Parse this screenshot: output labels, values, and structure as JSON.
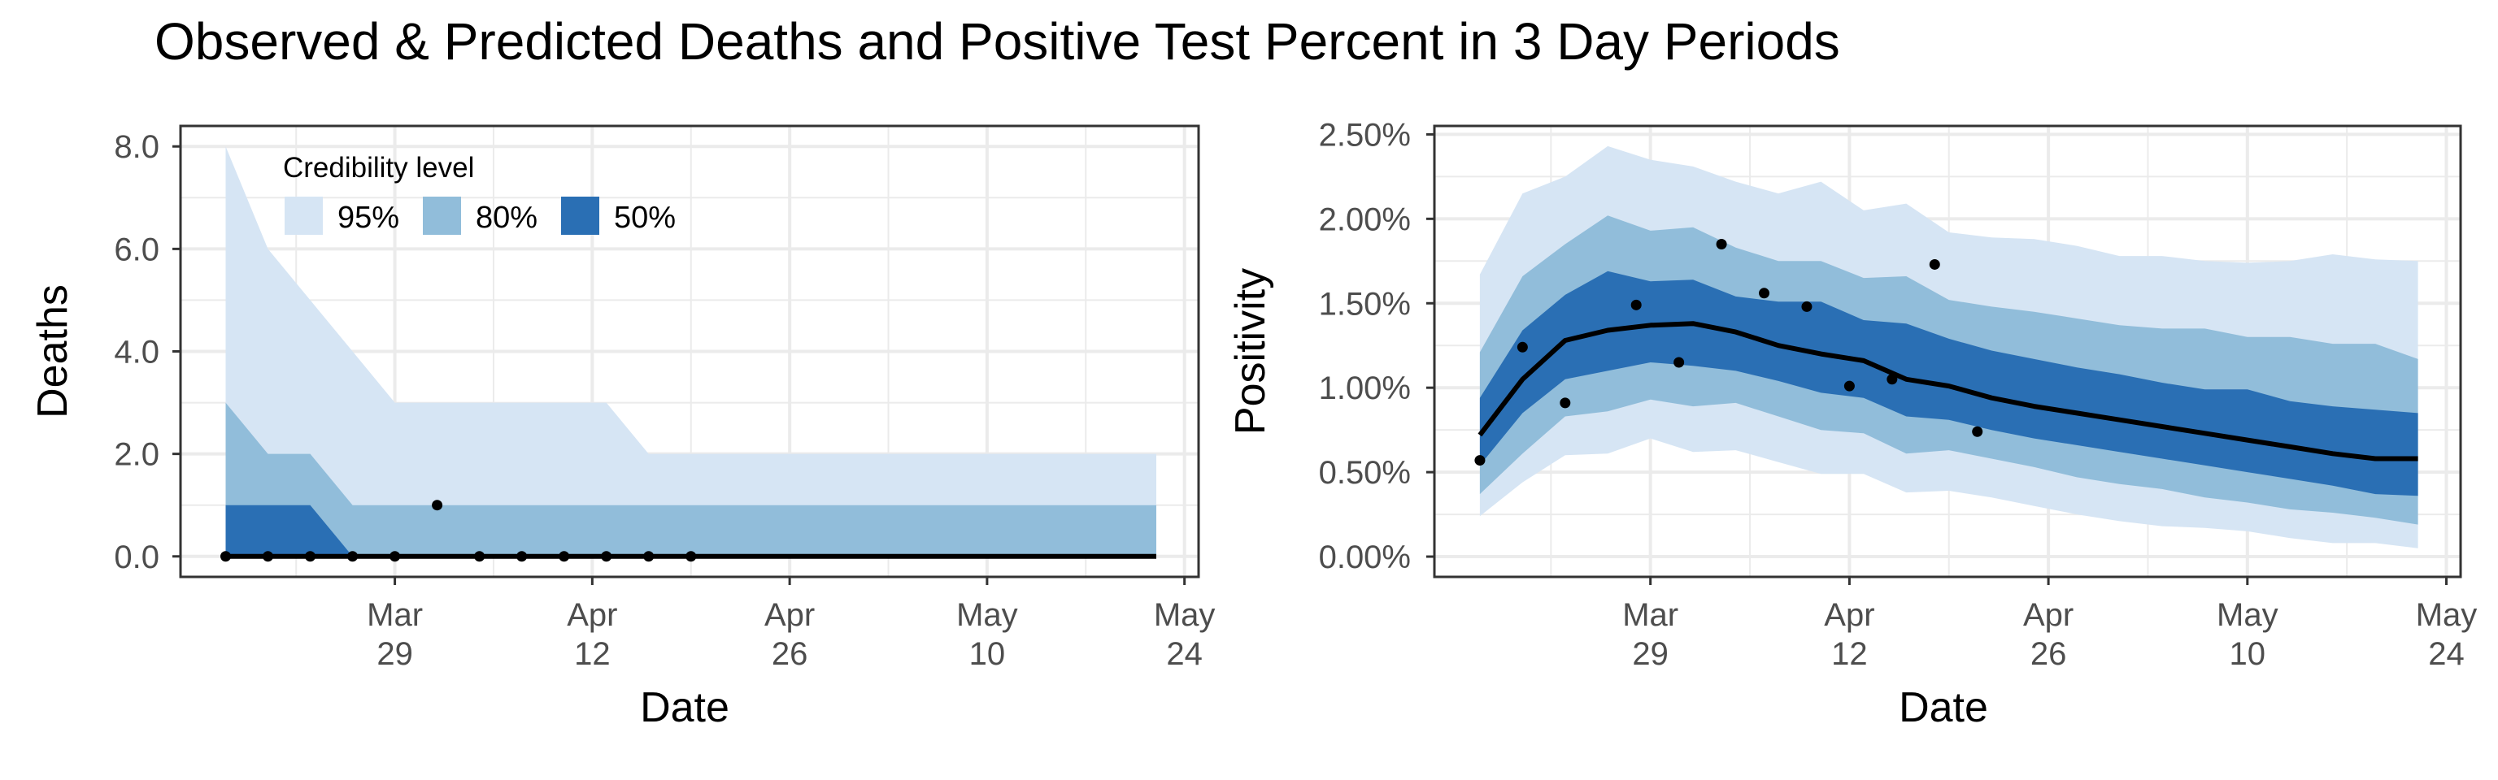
{
  "title": "Observed & Predicted Deaths and Positive Test Percent in 3 Day Periods",
  "colors": {
    "band95": "#d6e5f4",
    "band80": "#91bdda",
    "band50": "#2a6fb4",
    "line": "#000000",
    "points": "#000000",
    "grid": "#ebebeb",
    "axis": "#333333",
    "tick_text": "#4d4d4d"
  },
  "legend": {
    "title": "Credibility level",
    "items": [
      "95%",
      "80%",
      "50%"
    ]
  },
  "x_ticks": [
    {
      "label": "Mar\n29",
      "day": 28
    },
    {
      "label": "Apr\n12",
      "day": 42
    },
    {
      "label": "Apr\n26",
      "day": 56
    },
    {
      "label": "May\n10",
      "day": 70
    },
    {
      "label": "May\n24",
      "day": 84
    }
  ],
  "chart_data": [
    {
      "type": "area",
      "xlabel": "Date",
      "ylabel": "Deaths",
      "xlim": [
        12.8,
        85
      ],
      "ylim": [
        -0.4,
        8.4
      ],
      "y_ticks": [
        0,
        2,
        4,
        6,
        8
      ],
      "y_tick_labels": [
        "0.0",
        "2.0",
        "4.0",
        "6.0",
        "8.0"
      ],
      "x_days": [
        16,
        19,
        22,
        25,
        28,
        31,
        34,
        37,
        40,
        43,
        46,
        49,
        52,
        55,
        58,
        61,
        64,
        67,
        70,
        73,
        76,
        79,
        82
      ],
      "median": [
        0,
        0,
        0,
        0,
        0,
        0,
        0,
        0,
        0,
        0,
        0,
        0,
        0,
        0,
        0,
        0,
        0,
        0,
        0,
        0,
        0,
        0,
        0
      ],
      "bands": [
        {
          "name": "95%",
          "lower": [
            0,
            0,
            0,
            0,
            0,
            0,
            0,
            0,
            0,
            0,
            0,
            0,
            0,
            0,
            0,
            0,
            0,
            0,
            0,
            0,
            0,
            0,
            0
          ],
          "upper": [
            8,
            6,
            5,
            4,
            3,
            3,
            3,
            3,
            3,
            3,
            2,
            2,
            2,
            2,
            2,
            2,
            2,
            2,
            2,
            2,
            2,
            2,
            2
          ]
        },
        {
          "name": "80%",
          "lower": [
            0,
            0,
            0,
            0,
            0,
            0,
            0,
            0,
            0,
            0,
            0,
            0,
            0,
            0,
            0,
            0,
            0,
            0,
            0,
            0,
            0,
            0,
            0
          ],
          "upper": [
            3,
            2,
            2,
            1,
            1,
            1,
            1,
            1,
            1,
            1,
            1,
            1,
            1,
            1,
            1,
            1,
            1,
            1,
            1,
            1,
            1,
            1,
            1
          ]
        },
        {
          "name": "50%",
          "lower": [
            0,
            0,
            0,
            0,
            0,
            0,
            0,
            0,
            0,
            0,
            0,
            0,
            0,
            0,
            0,
            0,
            0,
            0,
            0,
            0,
            0,
            0,
            0
          ],
          "upper": [
            1,
            1,
            1,
            0,
            0,
            0,
            0,
            0,
            0,
            0,
            0,
            0,
            0,
            0,
            0,
            0,
            0,
            0,
            0,
            0,
            0,
            0,
            0
          ]
        }
      ],
      "observed": [
        {
          "day": 16,
          "value": 0
        },
        {
          "day": 19,
          "value": 0
        },
        {
          "day": 22,
          "value": 0
        },
        {
          "day": 25,
          "value": 0
        },
        {
          "day": 28,
          "value": 0
        },
        {
          "day": 31,
          "value": 1
        },
        {
          "day": 34,
          "value": 0
        },
        {
          "day": 37,
          "value": 0
        },
        {
          "day": 40,
          "value": 0
        },
        {
          "day": 43,
          "value": 0
        },
        {
          "day": 46,
          "value": 0
        },
        {
          "day": 49,
          "value": 0
        }
      ]
    },
    {
      "type": "area",
      "xlabel": "Date",
      "ylabel": "Positivity",
      "xlim": [
        12.8,
        85
      ],
      "ylim": [
        -0.0012,
        0.0255
      ],
      "y_ticks": [
        0,
        0.005,
        0.01,
        0.015,
        0.02,
        0.025
      ],
      "y_tick_labels": [
        "0.00%",
        "0.50%",
        "1.00%",
        "1.50%",
        "2.00%",
        "2.50%"
      ],
      "x_days": [
        16,
        19,
        22,
        25,
        28,
        31,
        34,
        37,
        40,
        43,
        46,
        49,
        52,
        55,
        58,
        61,
        64,
        67,
        70,
        73,
        76,
        79,
        82
      ],
      "median": [
        0.0072,
        0.0105,
        0.0128,
        0.0134,
        0.0137,
        0.0138,
        0.0133,
        0.0125,
        0.012,
        0.0116,
        0.0105,
        0.0101,
        0.0094,
        0.0089,
        0.0085,
        0.0081,
        0.0077,
        0.0073,
        0.0069,
        0.0065,
        0.0061,
        0.0058,
        0.0058
      ],
      "bands": [
        {
          "name": "95%",
          "lower": [
            0.0024,
            0.0044,
            0.006,
            0.0061,
            0.007,
            0.0062,
            0.0063,
            0.0056,
            0.0049,
            0.0049,
            0.0038,
            0.0039,
            0.0035,
            0.003,
            0.0025,
            0.0021,
            0.0018,
            0.0017,
            0.0015,
            0.0011,
            0.0008,
            0.0008,
            0.0005
          ],
          "upper": [
            0.0167,
            0.0215,
            0.0225,
            0.0243,
            0.0235,
            0.0231,
            0.0222,
            0.0215,
            0.0222,
            0.0205,
            0.0209,
            0.0192,
            0.0189,
            0.0188,
            0.0184,
            0.0178,
            0.0178,
            0.0175,
            0.0174,
            0.0175,
            0.0179,
            0.0176,
            0.0175
          ]
        },
        {
          "name": "80%",
          "lower": [
            0.0037,
            0.0061,
            0.0083,
            0.0086,
            0.0093,
            0.0089,
            0.0091,
            0.0083,
            0.0075,
            0.0073,
            0.0061,
            0.0063,
            0.0058,
            0.0053,
            0.0047,
            0.0043,
            0.004,
            0.0035,
            0.0032,
            0.0028,
            0.0026,
            0.0023,
            0.0019
          ],
          "upper": [
            0.0121,
            0.0166,
            0.0185,
            0.0202,
            0.0193,
            0.0195,
            0.0183,
            0.0175,
            0.0175,
            0.0165,
            0.0166,
            0.0152,
            0.0148,
            0.0145,
            0.0141,
            0.0137,
            0.0135,
            0.0135,
            0.013,
            0.013,
            0.0126,
            0.0126,
            0.0117
          ]
        },
        {
          "name": "50%",
          "lower": [
            0.0054,
            0.0085,
            0.0105,
            0.011,
            0.0115,
            0.0113,
            0.011,
            0.0104,
            0.0097,
            0.0094,
            0.0083,
            0.0081,
            0.0075,
            0.007,
            0.0066,
            0.0062,
            0.0058,
            0.0054,
            0.005,
            0.0046,
            0.0042,
            0.0037,
            0.0036
          ],
          "upper": [
            0.0094,
            0.0134,
            0.0155,
            0.0169,
            0.0163,
            0.0164,
            0.0154,
            0.0151,
            0.0151,
            0.014,
            0.0138,
            0.0129,
            0.0122,
            0.0117,
            0.0112,
            0.0108,
            0.0103,
            0.0099,
            0.0099,
            0.0092,
            0.0089,
            0.0087,
            0.0085
          ]
        }
      ],
      "observed": [
        {
          "day": 16,
          "value": 0.0057
        },
        {
          "day": 19,
          "value": 0.0124
        },
        {
          "day": 22,
          "value": 0.0091
        },
        {
          "day": 27,
          "value": 0.0149
        },
        {
          "day": 30,
          "value": 0.0115
        },
        {
          "day": 33,
          "value": 0.0185
        },
        {
          "day": 36,
          "value": 0.0156
        },
        {
          "day": 39,
          "value": 0.0148
        },
        {
          "day": 42,
          "value": 0.0101
        },
        {
          "day": 45,
          "value": 0.0105
        },
        {
          "day": 48,
          "value": 0.0173
        },
        {
          "day": 51,
          "value": 0.0074
        }
      ]
    }
  ]
}
